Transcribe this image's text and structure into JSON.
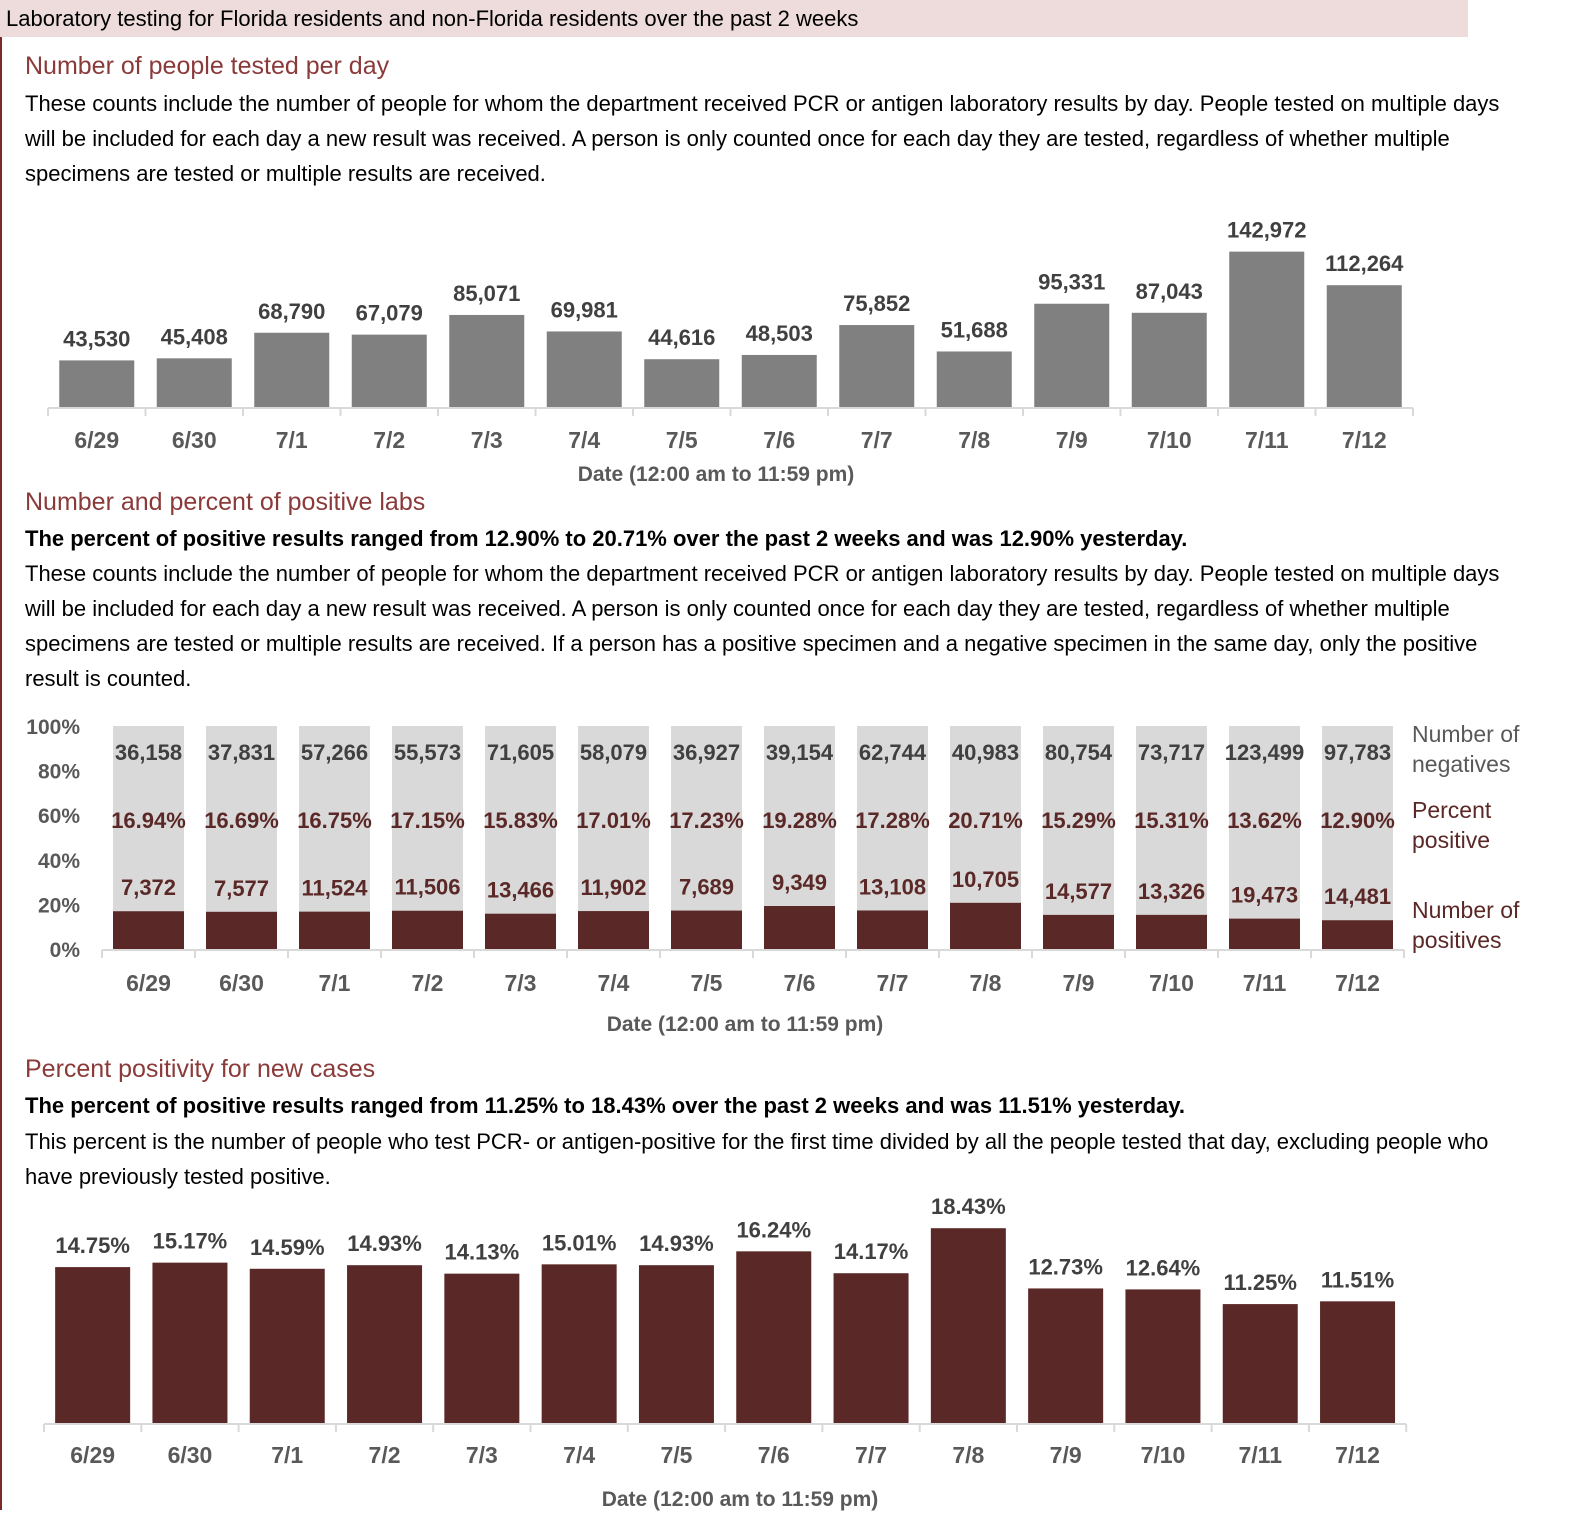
{
  "banner": "Laboratory testing for Florida residents and non-Florida residents over the past 2 weeks",
  "sections": {
    "tested": {
      "title": "Number of people tested per day",
      "body": "These counts include the number of people for whom the department received PCR or antigen laboratory results by day. People tested on multiple days will be included for each day a new result was received. A person is only counted once for each day they are tested, regardless of whether multiple specimens are tested or multiple results are received."
    },
    "positive": {
      "title": "Number and percent of positive labs",
      "summary": "The percent of positive results ranged from 12.90% to 20.71% over the past 2 weeks and was 12.90% yesterday.",
      "body": "These counts include the number of people for whom the department received PCR or antigen laboratory results by day. People tested on multiple days will be included for each day a new result was received. A person is only counted once for each day they are tested, regardless of whether multiple specimens are tested or multiple results are received. If a person has a positive specimen and a negative specimen in the same day, only the positive result is counted."
    },
    "newcases": {
      "title": "Percent positivity for new cases",
      "summary": "The percent of positive results ranged from 11.25% to 18.43% over the past 2 weeks and was 11.51% yesterday.",
      "body": "This percent is the number of people who test PCR- or antigen-positive for the first time divided by all the people tested that day, excluding people who have previously tested positive."
    }
  },
  "colors": {
    "gray_bar": "#808080",
    "maroon": "#5a2826",
    "neg_bg": "#d9d9d9",
    "label_gray": "#404040",
    "axis": "#d9d9d9",
    "title": "#8b3a3a"
  },
  "chart_data": [
    {
      "type": "bar",
      "title": "Number of people tested per day",
      "xlabel": "Date (12:00 am to 11:59 pm)",
      "ylabel": "",
      "categories": [
        "6/29",
        "6/30",
        "7/1",
        "7/2",
        "7/3",
        "7/4",
        "7/5",
        "7/6",
        "7/7",
        "7/8",
        "7/9",
        "7/10",
        "7/11",
        "7/12"
      ],
      "values": [
        43530,
        45408,
        68790,
        67079,
        85071,
        69981,
        44616,
        48503,
        75852,
        51688,
        95331,
        87043,
        142972,
        112264
      ],
      "value_labels": [
        "43,530",
        "45,408",
        "68,790",
        "67,079",
        "85,071",
        "69,981",
        "44,616",
        "48,503",
        "75,852",
        "51,688",
        "95,331",
        "87,043",
        "142,972",
        "112,264"
      ],
      "ylim": [
        0,
        160000
      ],
      "grid": false
    },
    {
      "type": "bar",
      "stacked": "percent",
      "title": "Number and percent of positive labs",
      "xlabel": "Date (12:00 am to 11:59 pm)",
      "categories": [
        "6/29",
        "6/30",
        "7/1",
        "7/2",
        "7/3",
        "7/4",
        "7/5",
        "7/6",
        "7/7",
        "7/8",
        "7/9",
        "7/10",
        "7/11",
        "7/12"
      ],
      "yticks": [
        "0%",
        "20%",
        "40%",
        "60%",
        "80%",
        "100%"
      ],
      "ylim": [
        0,
        100
      ],
      "series": [
        {
          "name": "Number of positives",
          "values": [
            7372,
            7577,
            11524,
            11506,
            13466,
            11902,
            7689,
            9349,
            13108,
            10705,
            14577,
            13326,
            19473,
            14481
          ],
          "labels": [
            "7,372",
            "7,577",
            "11,524",
            "11,506",
            "13,466",
            "11,902",
            "7,689",
            "9,349",
            "13,108",
            "10,705",
            "14,577",
            "13,326",
            "19,473",
            "14,481"
          ]
        },
        {
          "name": "Number of negatives",
          "values": [
            36158,
            37831,
            57266,
            55573,
            71605,
            58079,
            36927,
            39154,
            62744,
            40983,
            80754,
            73717,
            123499,
            97783
          ],
          "labels": [
            "36,158",
            "37,831",
            "57,266",
            "55,573",
            "71,605",
            "58,079",
            "36,927",
            "39,154",
            "62,744",
            "40,983",
            "80,754",
            "73,717",
            "123,499",
            "97,783"
          ]
        }
      ],
      "percent_positive": [
        16.94,
        16.69,
        16.75,
        17.15,
        15.83,
        17.01,
        17.23,
        19.28,
        17.28,
        20.71,
        15.29,
        15.31,
        13.62,
        12.9
      ],
      "percent_labels": [
        "16.94%",
        "16.69%",
        "16.75%",
        "17.15%",
        "15.83%",
        "17.01%",
        "17.23%",
        "19.28%",
        "17.28%",
        "20.71%",
        "15.29%",
        "15.31%",
        "13.62%",
        "12.90%"
      ],
      "legend": [
        "Number of negatives",
        "Percent positive",
        "Number of positives"
      ],
      "legend_placement": "right"
    },
    {
      "type": "bar",
      "title": "Percent positivity for new cases",
      "xlabel": "Date (12:00 am to 11:59 pm)",
      "categories": [
        "6/29",
        "6/30",
        "7/1",
        "7/2",
        "7/3",
        "7/4",
        "7/5",
        "7/6",
        "7/7",
        "7/8",
        "7/9",
        "7/10",
        "7/11",
        "7/12"
      ],
      "values": [
        14.75,
        15.17,
        14.59,
        14.93,
        14.13,
        15.01,
        14.93,
        16.24,
        14.17,
        18.43,
        12.73,
        12.64,
        11.25,
        11.51
      ],
      "value_labels": [
        "14.75%",
        "15.17%",
        "14.59%",
        "14.93%",
        "14.13%",
        "15.01%",
        "14.93%",
        "16.24%",
        "14.17%",
        "18.43%",
        "12.73%",
        "12.64%",
        "11.25%",
        "11.51%"
      ],
      "ylim": [
        0,
        20
      ]
    }
  ]
}
